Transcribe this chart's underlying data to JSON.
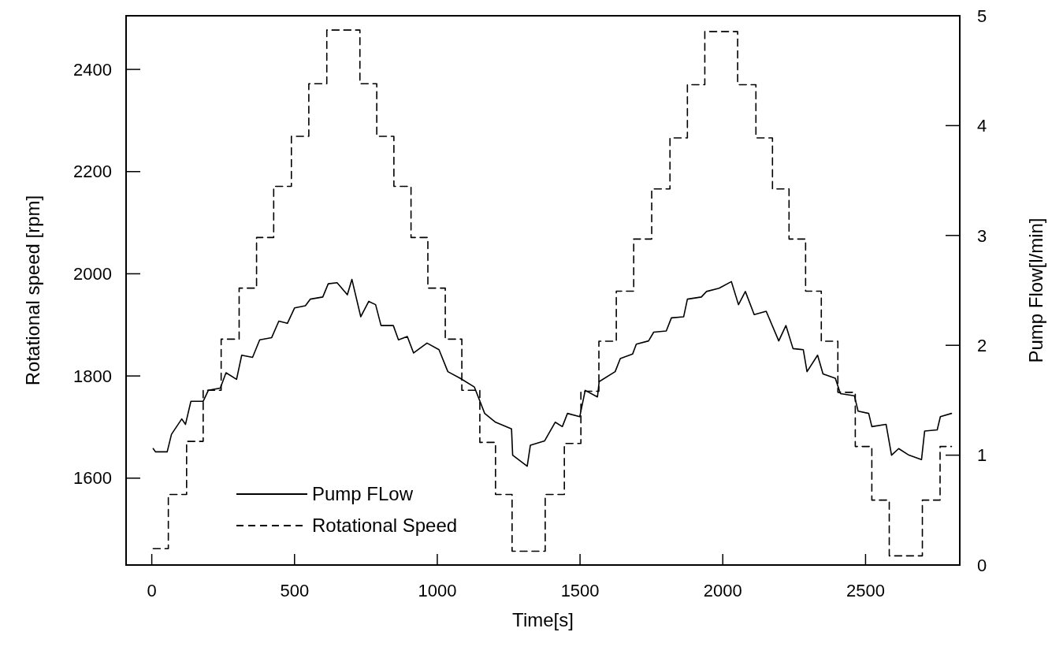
{
  "chart_data": {
    "type": "line",
    "xlabel": "Time[s]",
    "ylabel": "Rotational speed [rpm]",
    "y2label": "Pump Flow[l/min]",
    "xlim": [
      -90,
      2830
    ],
    "xticks": [
      0,
      500,
      1000,
      1500,
      2000,
      2500
    ],
    "ylim": [
      1430,
      2505
    ],
    "yticks": [
      1600,
      1800,
      2000,
      2200,
      2400
    ],
    "y2lim": [
      0,
      5
    ],
    "y2ticks": [
      0,
      1,
      2,
      3,
      4,
      5
    ],
    "grid": false,
    "legend": "bottom left",
    "marker": "none",
    "series": [
      {
        "name": "Pump FLow",
        "type": "line",
        "axis": "y2",
        "color": "#000000",
        "line_style": "solid",
        "x": [
          5,
          13,
          54,
          69,
          105,
          118,
          137,
          180,
          198,
          240,
          260,
          297,
          315,
          353,
          378,
          420,
          445,
          475,
          500,
          538,
          555,
          599,
          618,
          649,
          685,
          701,
          732,
          760,
          784,
          803,
          846,
          864,
          895,
          917,
          964,
          1006,
          1037,
          1080,
          1130,
          1166,
          1204,
          1260,
          1264,
          1315,
          1326,
          1376,
          1413,
          1438,
          1456,
          1499,
          1518,
          1561,
          1567,
          1623,
          1641,
          1684,
          1697,
          1740,
          1758,
          1802,
          1820,
          1863,
          1876,
          1925,
          1943,
          1987,
          2030,
          2055,
          2079,
          2110,
          2152,
          2196,
          2221,
          2246,
          2282,
          2295,
          2332,
          2351,
          2394,
          2412,
          2461,
          2474,
          2511,
          2522,
          2572,
          2591,
          2616,
          2652,
          2696,
          2707,
          2751,
          2762,
          2801
        ],
        "values": [
          1.06,
          1.03,
          1.03,
          1.19,
          1.33,
          1.28,
          1.49,
          1.49,
          1.59,
          1.61,
          1.75,
          1.69,
          1.91,
          1.89,
          2.05,
          2.07,
          2.22,
          2.2,
          2.34,
          2.36,
          2.42,
          2.44,
          2.56,
          2.57,
          2.46,
          2.6,
          2.26,
          2.4,
          2.37,
          2.18,
          2.18,
          2.05,
          2.08,
          1.93,
          2.02,
          1.96,
          1.76,
          1.7,
          1.62,
          1.38,
          1.3,
          1.24,
          1.0,
          0.9,
          1.09,
          1.13,
          1.3,
          1.26,
          1.38,
          1.35,
          1.59,
          1.53,
          1.67,
          1.76,
          1.88,
          1.92,
          2.01,
          2.04,
          2.12,
          2.13,
          2.25,
          2.26,
          2.42,
          2.44,
          2.49,
          2.52,
          2.58,
          2.37,
          2.49,
          2.28,
          2.31,
          2.04,
          2.18,
          1.97,
          1.96,
          1.76,
          1.91,
          1.74,
          1.7,
          1.56,
          1.54,
          1.4,
          1.38,
          1.26,
          1.28,
          1.0,
          1.06,
          1.0,
          0.96,
          1.22,
          1.23,
          1.35,
          1.38
        ]
      },
      {
        "name": "Rotational Speed",
        "type": "step",
        "axis": "y",
        "color": "#000000",
        "line_style": "dashed",
        "x": [
          5,
          58,
          122,
          180,
          243,
          306,
          367,
          427,
          489,
          550,
          613,
          729,
          788,
          848,
          908,
          967,
          1028,
          1086,
          1149,
          1204,
          1262,
          1378,
          1445,
          1503,
          1566,
          1627,
          1688,
          1751,
          1815,
          1876,
          1937,
          2052,
          2116,
          2174,
          2232,
          2290,
          2345,
          2403,
          2464,
          2522,
          2583,
          2699,
          2761,
          2801
        ],
        "values": [
          1462,
          1568,
          1672,
          1772,
          1872,
          1972,
          2071,
          2171,
          2269,
          2372,
          2477,
          2372,
          2269,
          2171,
          2071,
          1972,
          1872,
          1772,
          1670,
          1568,
          1457,
          1568,
          1668,
          1770,
          1868,
          1966,
          2068,
          2166,
          2266,
          2370,
          2474,
          2370,
          2266,
          2166,
          2068,
          1966,
          1868,
          1768,
          1662,
          1557,
          1448,
          1557,
          1662,
          1662
        ]
      }
    ]
  }
}
